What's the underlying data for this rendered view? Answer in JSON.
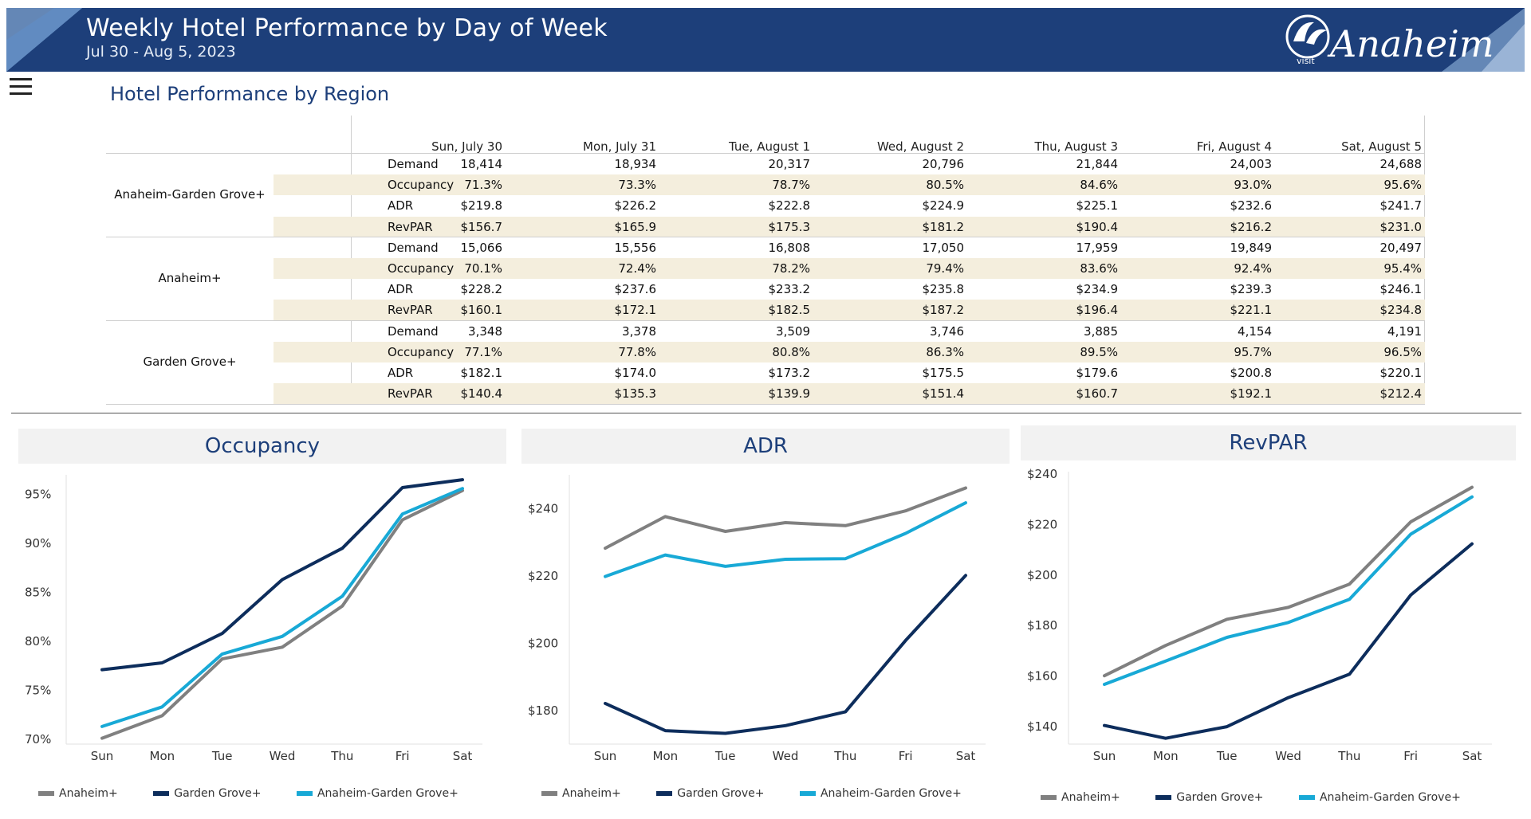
{
  "header": {
    "title": "Weekly Hotel Performance by Day of Week",
    "subtitle": "Jul 30 - Aug 5, 2023",
    "logo_visit": "visit",
    "logo_word": "Anaheim"
  },
  "colors": {
    "anaheim": "#808080",
    "garden": "#0d2d5c",
    "agg": "#18a9d6",
    "banner": "#1d3f7a"
  },
  "table": {
    "section_title": "Hotel Performance by Region",
    "columns": [
      "Sun, July 30",
      "Mon, July 31",
      "Tue, August 1",
      "Wed, August 2",
      "Thu, August 3",
      "Fri, August 4",
      "Sat, August 5"
    ],
    "regions": [
      {
        "name": "Anaheim-Garden Grove+",
        "rows": [
          {
            "metric": "Demand",
            "values": [
              "18,414",
              "18,934",
              "20,317",
              "20,796",
              "21,844",
              "24,003",
              "24,688"
            ]
          },
          {
            "metric": "Occupancy",
            "values": [
              "71.3%",
              "73.3%",
              "78.7%",
              "80.5%",
              "84.6%",
              "93.0%",
              "95.6%"
            ]
          },
          {
            "metric": "ADR",
            "values": [
              "$219.8",
              "$226.2",
              "$222.8",
              "$224.9",
              "$225.1",
              "$232.6",
              "$241.7"
            ]
          },
          {
            "metric": "RevPAR",
            "values": [
              "$156.7",
              "$165.9",
              "$175.3",
              "$181.2",
              "$190.4",
              "$216.2",
              "$231.0"
            ]
          }
        ]
      },
      {
        "name": "Anaheim+",
        "rows": [
          {
            "metric": "Demand",
            "values": [
              "15,066",
              "15,556",
              "16,808",
              "17,050",
              "17,959",
              "19,849",
              "20,497"
            ]
          },
          {
            "metric": "Occupancy",
            "values": [
              "70.1%",
              "72.4%",
              "78.2%",
              "79.4%",
              "83.6%",
              "92.4%",
              "95.4%"
            ]
          },
          {
            "metric": "ADR",
            "values": [
              "$228.2",
              "$237.6",
              "$233.2",
              "$235.8",
              "$234.9",
              "$239.3",
              "$246.1"
            ]
          },
          {
            "metric": "RevPAR",
            "values": [
              "$160.1",
              "$172.1",
              "$182.5",
              "$187.2",
              "$196.4",
              "$221.1",
              "$234.8"
            ]
          }
        ]
      },
      {
        "name": "Garden Grove+",
        "rows": [
          {
            "metric": "Demand",
            "values": [
              "3,348",
              "3,378",
              "3,509",
              "3,746",
              "3,885",
              "4,154",
              "4,191"
            ]
          },
          {
            "metric": "Occupancy",
            "values": [
              "77.1%",
              "77.8%",
              "80.8%",
              "86.3%",
              "89.5%",
              "95.7%",
              "96.5%"
            ]
          },
          {
            "metric": "ADR",
            "values": [
              "$182.1",
              "$174.0",
              "$173.2",
              "$175.5",
              "$179.6",
              "$200.8",
              "$220.1"
            ]
          },
          {
            "metric": "RevPAR",
            "values": [
              "$140.4",
              "$135.3",
              "$139.9",
              "$151.4",
              "$160.7",
              "$192.1",
              "$212.4"
            ]
          }
        ]
      }
    ]
  },
  "chart_data": [
    {
      "type": "line",
      "title": "Occupancy",
      "categories": [
        "Sun",
        "Mon",
        "Tue",
        "Wed",
        "Thu",
        "Fri",
        "Sat"
      ],
      "ylim": [
        69.5,
        97
      ],
      "yticks": [
        70,
        75,
        80,
        85,
        90,
        95
      ],
      "yticklabels": [
        "70%",
        "75%",
        "80%",
        "85%",
        "90%",
        "95%"
      ],
      "series": [
        {
          "name": "Anaheim+",
          "color": "#808080",
          "values": [
            70.1,
            72.4,
            78.2,
            79.4,
            83.6,
            92.4,
            95.4
          ]
        },
        {
          "name": "Garden Grove+",
          "color": "#0d2d5c",
          "values": [
            77.1,
            77.8,
            80.8,
            86.3,
            89.5,
            95.7,
            96.5
          ]
        },
        {
          "name": "Anaheim-Garden Grove+",
          "color": "#18a9d6",
          "values": [
            71.3,
            73.3,
            78.7,
            80.5,
            84.6,
            93.0,
            95.6
          ]
        }
      ]
    },
    {
      "type": "line",
      "title": "ADR",
      "categories": [
        "Sun",
        "Mon",
        "Tue",
        "Wed",
        "Thu",
        "Fri",
        "Sat"
      ],
      "ylim": [
        170,
        250
      ],
      "yticks": [
        180,
        200,
        220,
        240
      ],
      "yticklabels": [
        "$180",
        "$200",
        "$220",
        "$240"
      ],
      "series": [
        {
          "name": "Anaheim+",
          "color": "#808080",
          "values": [
            228.2,
            237.6,
            233.2,
            235.8,
            234.9,
            239.3,
            246.1
          ]
        },
        {
          "name": "Garden Grove+",
          "color": "#0d2d5c",
          "values": [
            182.1,
            174.0,
            173.2,
            175.5,
            179.6,
            200.8,
            220.1
          ]
        },
        {
          "name": "Anaheim-Garden Grove+",
          "color": "#18a9d6",
          "values": [
            219.8,
            226.2,
            222.8,
            224.9,
            225.1,
            232.6,
            241.7
          ]
        }
      ]
    },
    {
      "type": "line",
      "title": "RevPAR",
      "categories": [
        "Sun",
        "Mon",
        "Tue",
        "Wed",
        "Thu",
        "Fri",
        "Sat"
      ],
      "ylim": [
        133,
        241
      ],
      "yticks": [
        140,
        160,
        180,
        200,
        220,
        240
      ],
      "yticklabels": [
        "$140",
        "$160",
        "$180",
        "$200",
        "$220",
        "$240"
      ],
      "series": [
        {
          "name": "Anaheim+",
          "color": "#808080",
          "values": [
            160.1,
            172.1,
            182.5,
            187.2,
            196.4,
            221.1,
            234.8
          ]
        },
        {
          "name": "Garden Grove+",
          "color": "#0d2d5c",
          "values": [
            140.4,
            135.3,
            139.9,
            151.4,
            160.7,
            192.1,
            212.4
          ]
        },
        {
          "name": "Anaheim-Garden Grove+",
          "color": "#18a9d6",
          "values": [
            156.7,
            165.9,
            175.3,
            181.2,
            190.4,
            216.2,
            231.0
          ]
        }
      ]
    }
  ]
}
